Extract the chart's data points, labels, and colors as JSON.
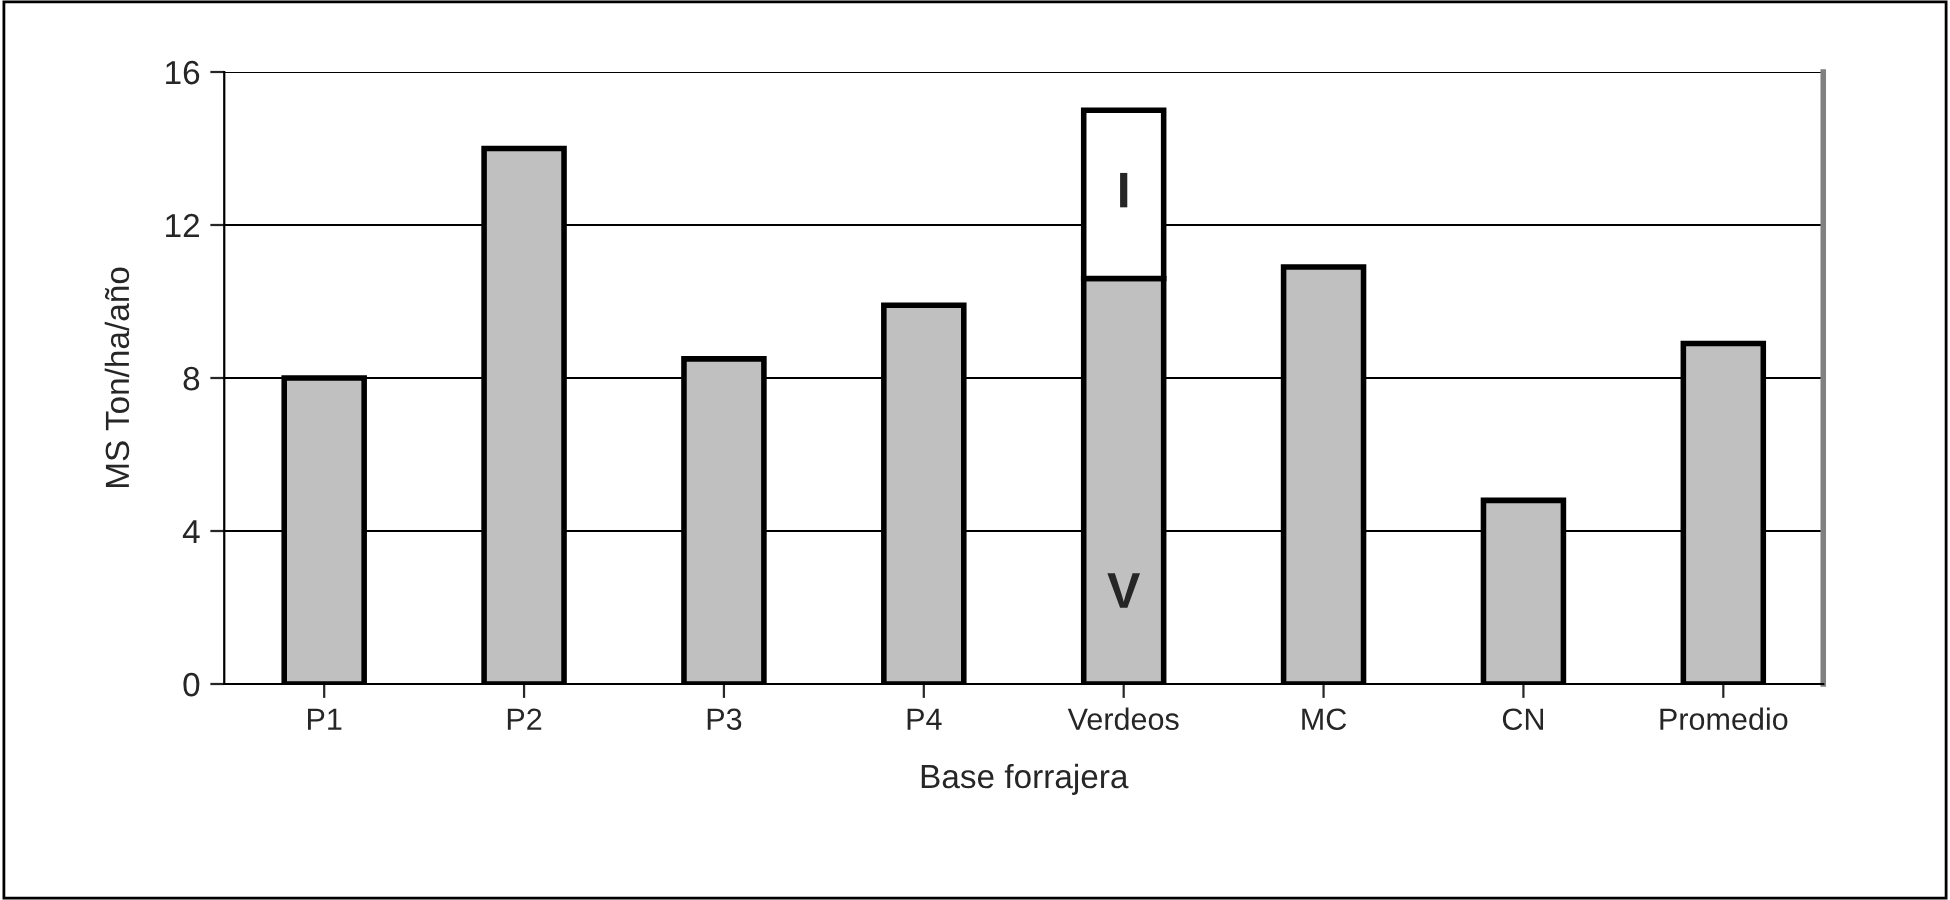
{
  "chart_data": {
    "type": "bar",
    "xlabel": "Base forrajera",
    "ylabel": "MS Ton/ha/año",
    "categories": [
      "P1",
      "P2",
      "P3",
      "P4",
      "Verdeos",
      "MC",
      "CN",
      "Promedio"
    ],
    "series": [
      {
        "name": "V",
        "color": "#c0c0c0",
        "values": [
          8.0,
          14.0,
          8.5,
          9.9,
          10.6,
          10.9,
          4.8,
          8.9
        ]
      },
      {
        "name": "I",
        "color": "#ffffff",
        "values": [
          null,
          null,
          null,
          null,
          4.4,
          null,
          null,
          null
        ]
      }
    ],
    "stacked": true,
    "ylim": [
      0,
      16
    ],
    "yticks": [
      0,
      4,
      8,
      12,
      16
    ],
    "grid": "y",
    "legend": false
  }
}
